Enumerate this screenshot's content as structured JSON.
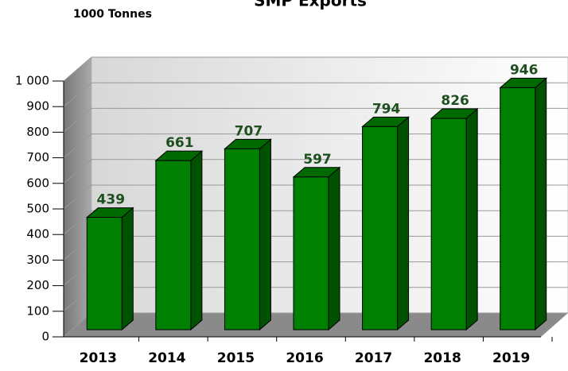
{
  "chart_data": {
    "type": "bar3d",
    "title": "SMP Exports",
    "y_label": "1000 Tonnes",
    "categories": [
      "2013",
      "2014",
      "2015",
      "2016",
      "2017",
      "2018",
      "2019"
    ],
    "values": [
      439,
      661,
      707,
      597,
      794,
      826,
      946
    ],
    "color": "#008000",
    "ylim": [
      0,
      1000
    ],
    "yticks": [
      0,
      100,
      200,
      300,
      400,
      500,
      600,
      700,
      800,
      900,
      {
        "value": 1000,
        "label": "1 000"
      }
    ],
    "grid": true
  }
}
